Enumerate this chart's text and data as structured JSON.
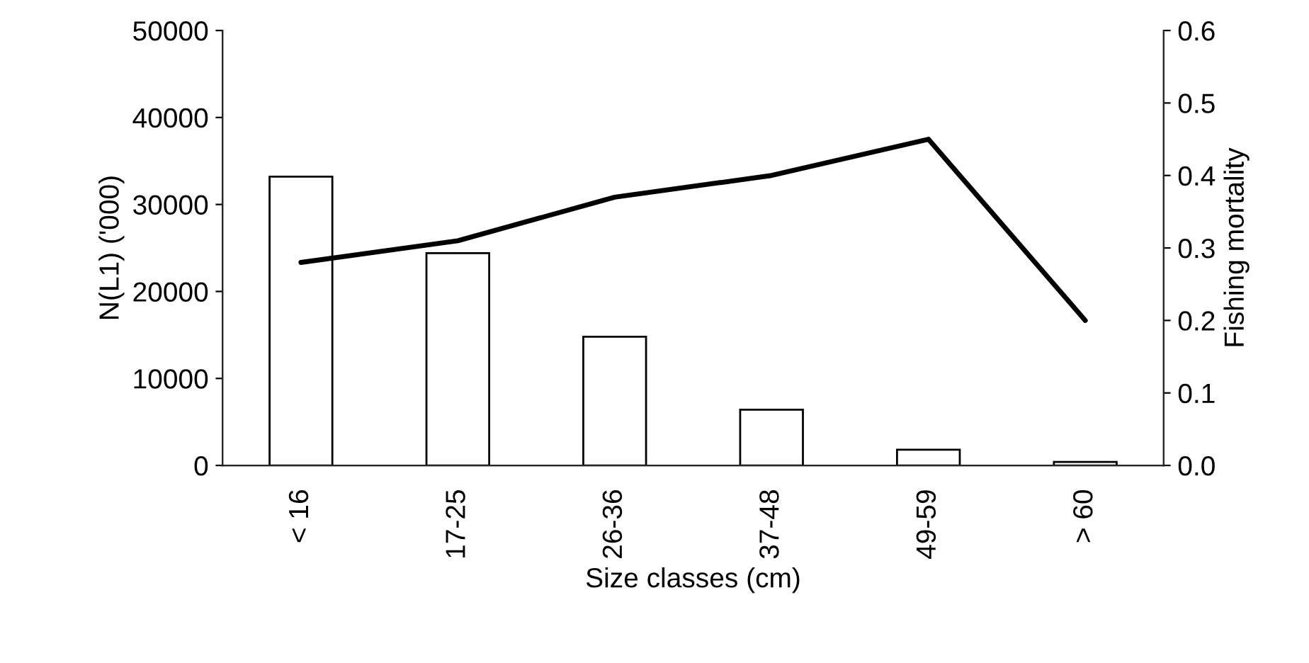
{
  "chart_data": {
    "type": "bar",
    "xlabel": "Size classes (cm)",
    "ylabel": "N(L1) ('000)",
    "y2label": "Fishing mortality",
    "categories": [
      "< 16",
      "17-25",
      "26-36",
      "37-48",
      "49-59",
      "> 60"
    ],
    "series": [
      {
        "color": "#ffffff",
        "values": [
          33200,
          24400,
          14800,
          6400,
          1800,
          400
        ]
      },
      {
        "type": "line",
        "axis": "y2",
        "color": "#000000",
        "values": [
          0.28,
          0.31,
          0.37,
          0.4,
          0.45,
          0.2
        ]
      }
    ],
    "ylim": [
      0,
      50000
    ],
    "yticks": [
      0,
      10000,
      20000,
      30000,
      40000,
      50000
    ],
    "y2lim": [
      0,
      0.6
    ],
    "y2ticks": [
      {
        "value": 0,
        "label": "0.0"
      },
      {
        "value": 0.1,
        "label": "0.1"
      },
      {
        "value": 0.2,
        "label": "0.2"
      },
      {
        "value": 0.3,
        "label": "0.3"
      },
      {
        "value": 0.4,
        "label": "0.4"
      },
      {
        "value": 0.5,
        "label": "0.5"
      },
      {
        "value": 0.6,
        "label": "0.6"
      }
    ]
  }
}
